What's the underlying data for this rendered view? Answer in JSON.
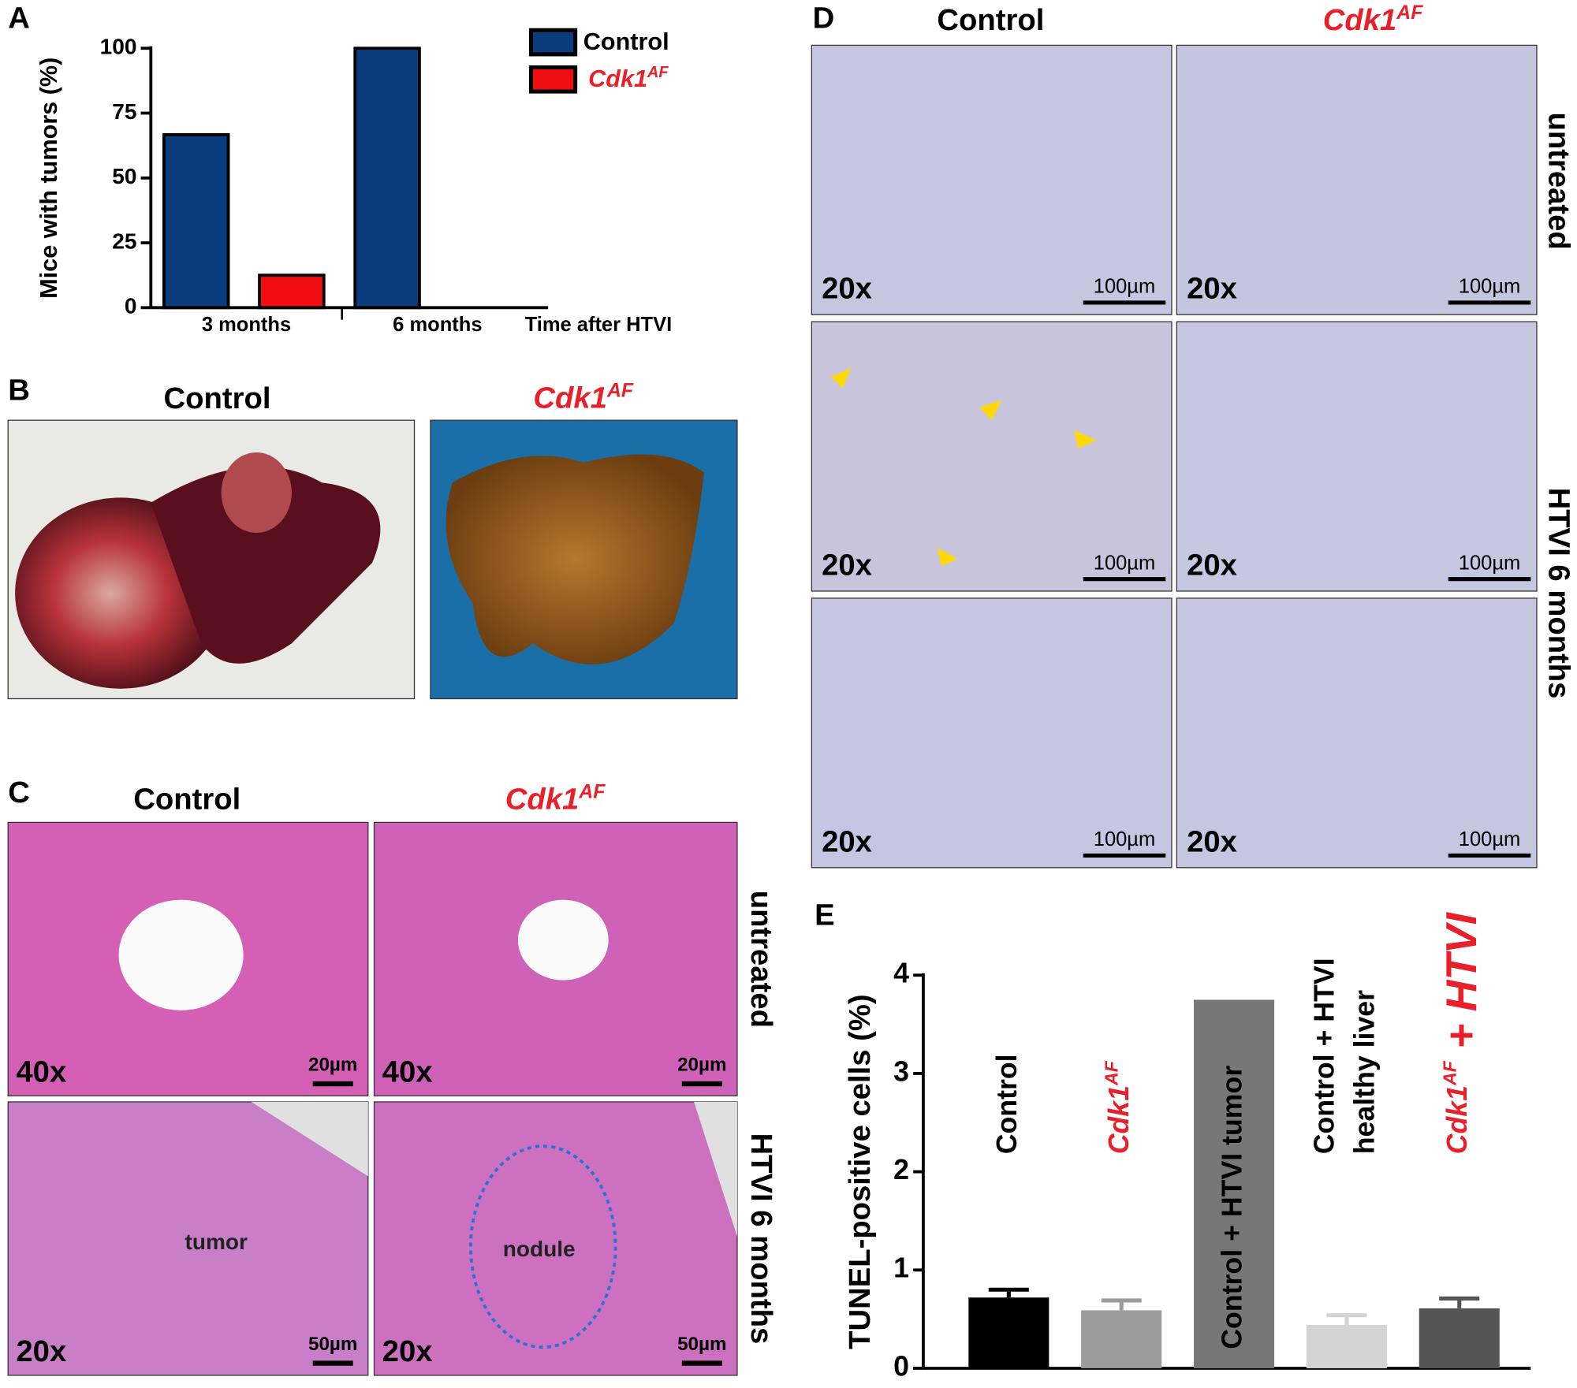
{
  "chart_data": [
    {
      "type": "bar",
      "letter": "A",
      "y_label": "Mice with tumors (%)",
      "x_label": "Time after HTVI",
      "categories": [
        "3 months",
        "6 months"
      ],
      "series": [
        {
          "name": "Control",
          "color": "#0b3d7e",
          "values": [
            66.7,
            100
          ]
        },
        {
          "name": {
            "base": "Cdk1",
            "sup": "AF"
          },
          "name_color": "#e8202a",
          "color": "#f00d10",
          "values": [
            12.5,
            0
          ]
        }
      ],
      "ylim": [
        0,
        100
      ],
      "yticks": [
        0,
        25,
        50,
        75,
        100
      ],
      "legend": "upper right"
    },
    {
      "type": "bar",
      "letter": "E",
      "y_label": "TUNEL-positive cells (%)",
      "categories": [
        "Control",
        {
          "base": "Cdk1",
          "sup": "AF"
        },
        "Control + HTVI tumor",
        [
          "Control + HTVI",
          "healthy liver"
        ],
        {
          "base": "Cdk1",
          "sup": "AF",
          "rest": " + HTVI"
        }
      ],
      "category_colors": [
        "#000000",
        "#e8202a",
        "#000000",
        "#000000",
        "#e8202a"
      ],
      "values": [
        0.72,
        0.59,
        3.75,
        0.44,
        0.61
      ],
      "errors": [
        0.08,
        0.1,
        null,
        0.1,
        0.1
      ],
      "colors": [
        "#000000",
        "#9b9b9b",
        "#777777",
        "#d4d4d4",
        "#555555"
      ],
      "ylim": [
        0,
        4
      ],
      "yticks": [
        0,
        1,
        2,
        3,
        4
      ]
    }
  ],
  "panel_b": {
    "letter": "B",
    "columns": [
      "Control",
      {
        "base": "Cdk1",
        "sup": "AF"
      }
    ]
  },
  "panel_c": {
    "letter": "C",
    "columns": [
      "Control",
      {
        "base": "Cdk1",
        "sup": "AF"
      }
    ],
    "rows": [
      "untreated",
      "HTVI 6 months"
    ],
    "magnifications": [
      [
        "40x",
        "40x"
      ],
      [
        "20x",
        "20x"
      ]
    ],
    "scale_bars": [
      [
        "20µm",
        "20µm"
      ],
      [
        "50µm",
        "50µm"
      ]
    ],
    "annotations": [
      "tumor",
      "nodule"
    ]
  },
  "panel_d": {
    "letter": "D",
    "columns": [
      "Control",
      {
        "base": "Cdk1",
        "sup": "AF"
      }
    ],
    "rows": [
      "untreated",
      "HTVI 6 months"
    ],
    "magnifications": [
      [
        "20x",
        "20x"
      ],
      [
        "20x",
        "20x"
      ],
      [
        "20x",
        "20x"
      ]
    ],
    "scale_bars": [
      [
        "100µm",
        "100µm"
      ],
      [
        "100µm",
        "100µm"
      ],
      [
        "100µm",
        "100µm"
      ]
    ]
  }
}
